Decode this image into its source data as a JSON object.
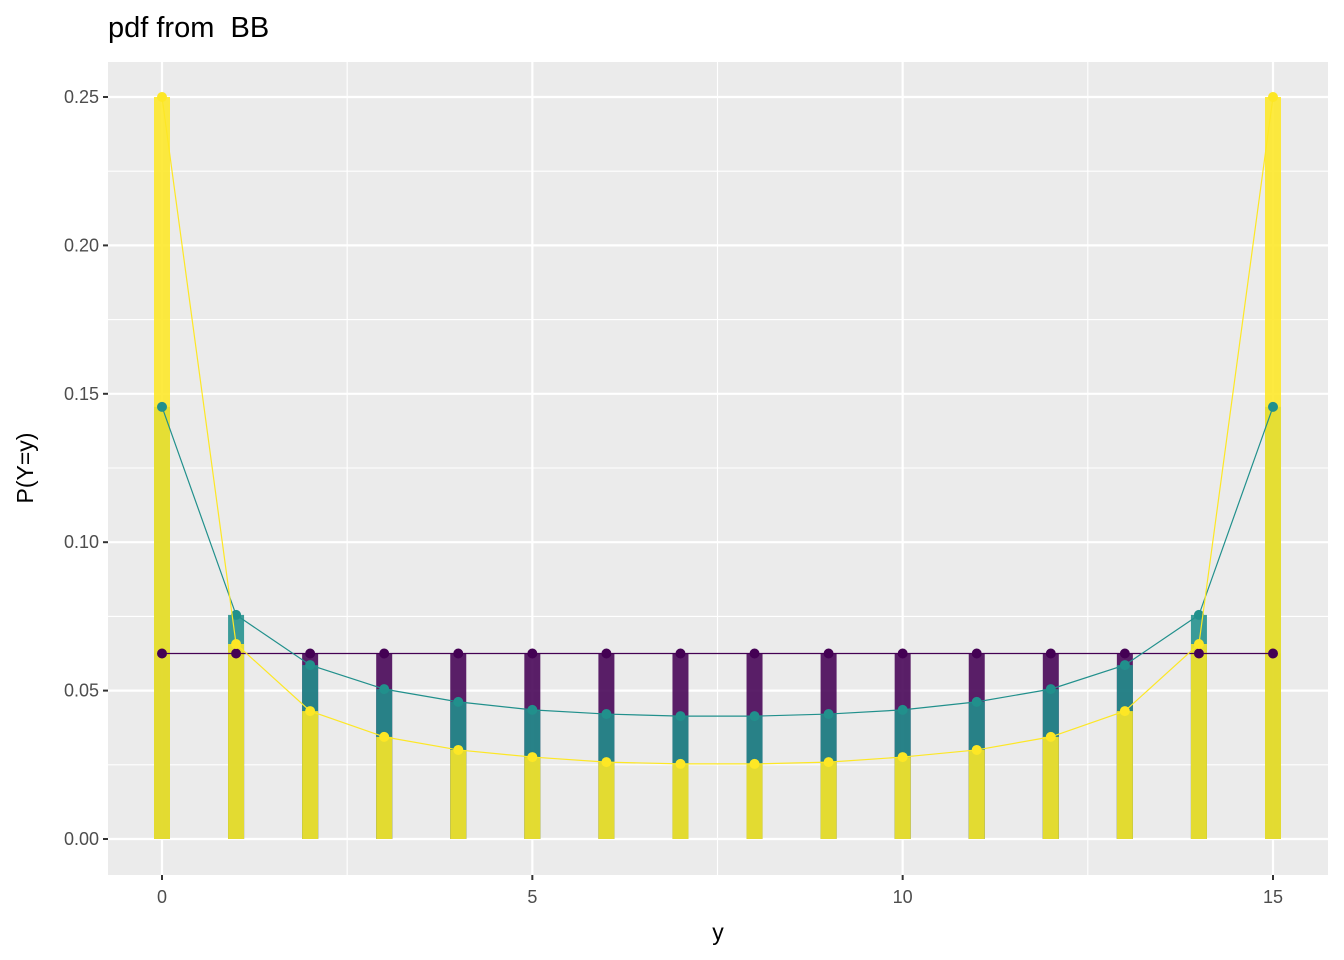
{
  "title": "pdf from  BB",
  "chart_data": {
    "type": "bar",
    "title": "pdf from  BB",
    "xlabel": "y",
    "ylabel": "P(Y=y)",
    "x": [
      0,
      1,
      2,
      3,
      4,
      5,
      6,
      7,
      8,
      9,
      10,
      11,
      12,
      13,
      14,
      15
    ],
    "xlim": [
      -0.75,
      15.75
    ],
    "ylim": [
      -0.0125,
      0.262
    ],
    "xticks": [
      "0",
      "5",
      "10",
      "15"
    ],
    "xtick_values": [
      0,
      5,
      10,
      15
    ],
    "yticks": [
      "0.00",
      "0.05",
      "0.10",
      "0.15",
      "0.20",
      "0.25"
    ],
    "ytick_values": [
      0,
      0.05,
      0.1,
      0.15,
      0.2,
      0.25
    ],
    "grid": true,
    "legend": "none",
    "series": [
      {
        "color": "#440154",
        "values": [
          0.0625,
          0.0625,
          0.0625,
          0.0625,
          0.0625,
          0.0625,
          0.0625,
          0.0625,
          0.0625,
          0.0625,
          0.0625,
          0.0625,
          0.0625,
          0.0625,
          0.0625,
          0.0625
        ]
      },
      {
        "color": "#21908C",
        "values": [
          0.1456,
          0.0755,
          0.0586,
          0.0505,
          0.0462,
          0.0435,
          0.0421,
          0.0414,
          0.0414,
          0.0421,
          0.0435,
          0.0462,
          0.0505,
          0.0586,
          0.0755,
          0.1456
        ]
      },
      {
        "color": "#FDE725",
        "values": [
          0.25,
          0.0657,
          0.0431,
          0.0344,
          0.03,
          0.0276,
          0.0259,
          0.0253,
          0.0253,
          0.0259,
          0.0276,
          0.03,
          0.0344,
          0.0431,
          0.0657,
          0.25
        ]
      }
    ]
  }
}
